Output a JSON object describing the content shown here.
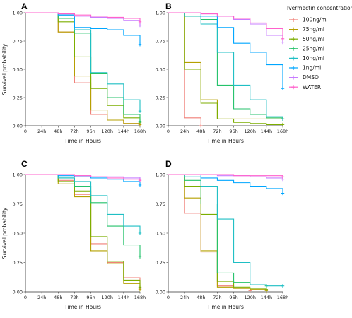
{
  "legend": {
    "title": "Ivermectin concentration",
    "placement": "right",
    "entries": [
      {
        "name": "100ng/ml",
        "color": "#f07f77"
      },
      {
        "name": "75ng/ml",
        "color": "#b5a000"
      },
      {
        "name": "50ng/ml",
        "color": "#7cae00"
      },
      {
        "name": "25ng/ml",
        "color": "#24c26b"
      },
      {
        "name": "10ng/ml",
        "color": "#1fbfc4"
      },
      {
        "name": "1ng/ml",
        "color": "#00a6ff"
      },
      {
        "name": "DMSO",
        "color": "#c77cff"
      },
      {
        "name": "WATER",
        "color": "#ff61cc"
      }
    ]
  },
  "chart_data": [
    {
      "panel": "A",
      "type": "line",
      "step": true,
      "ylabel": "Survival probability",
      "xlabel": "Time in Hours",
      "x_ticks": [
        "0",
        "24h",
        "48h",
        "72h",
        "96h",
        "120h",
        "144h",
        "168h"
      ],
      "y_ticks": [
        "0.00",
        "0.25",
        "0.50",
        "0.75",
        "1.00"
      ],
      "xlim": [
        0,
        7
      ],
      "ylim": [
        0,
        1
      ],
      "grid": false,
      "series": [
        {
          "name": "100ng/ml",
          "x": [
            1,
            2,
            3,
            4,
            5,
            6,
            7
          ],
          "y": [
            1.0,
            0.83,
            0.38,
            0.1,
            0.05,
            0.02,
            0.01
          ]
        },
        {
          "name": "75ng/ml",
          "x": [
            1,
            2,
            3,
            4,
            5,
            6,
            7
          ],
          "y": [
            1.0,
            0.83,
            0.44,
            0.14,
            0.05,
            0.02,
            0.01
          ]
        },
        {
          "name": "50ng/ml",
          "x": [
            1,
            2,
            3,
            4,
            5,
            6,
            7
          ],
          "y": [
            1.0,
            0.92,
            0.61,
            0.33,
            0.18,
            0.07,
            0.03
          ]
        },
        {
          "name": "25ng/ml",
          "x": [
            1,
            2,
            3,
            4,
            5,
            6,
            7
          ],
          "y": [
            1.0,
            0.95,
            0.82,
            0.46,
            0.25,
            0.1,
            0.04
          ]
        },
        {
          "name": "10ng/ml",
          "x": [
            1,
            2,
            3,
            4,
            5,
            6,
            7
          ],
          "y": [
            1.0,
            0.98,
            0.85,
            0.47,
            0.37,
            0.23,
            0.13
          ]
        },
        {
          "name": "1ng/ml",
          "x": [
            1,
            2,
            3,
            4,
            5,
            6,
            7
          ],
          "y": [
            1.0,
            0.98,
            0.87,
            0.86,
            0.85,
            0.8,
            0.72
          ]
        },
        {
          "name": "DMSO",
          "x": [
            1,
            2,
            3,
            4,
            5,
            6,
            7
          ],
          "y": [
            1.0,
            0.99,
            0.97,
            0.96,
            0.95,
            0.93,
            0.89
          ]
        },
        {
          "name": "WATER",
          "x": [
            1,
            2,
            3,
            4,
            5,
            6,
            7
          ],
          "y": [
            1.0,
            0.99,
            0.98,
            0.97,
            0.96,
            0.95,
            0.92
          ]
        }
      ]
    },
    {
      "panel": "B",
      "type": "line",
      "step": true,
      "ylabel": "",
      "xlabel": "Time in Hours",
      "x_ticks": [
        "0",
        "24h",
        "48h",
        "72h",
        "96h",
        "120h",
        "144h",
        "168h"
      ],
      "y_ticks": [
        "0.00",
        "0.25",
        "0.50",
        "0.75",
        "1.00"
      ],
      "xlim": [
        0,
        7
      ],
      "ylim": [
        0,
        1
      ],
      "grid": false,
      "series": [
        {
          "name": "100ng/ml",
          "x": [
            1,
            2
          ],
          "y": [
            0.07,
            0.0
          ]
        },
        {
          "name": "75ng/ml",
          "x": [
            1,
            2,
            3,
            4,
            5,
            6,
            7
          ],
          "y": [
            0.56,
            0.23,
            0.06,
            0.06,
            0.06,
            0.06,
            0.06
          ]
        },
        {
          "name": "50ng/ml",
          "x": [
            1,
            2,
            3,
            4,
            5,
            6,
            7
          ],
          "y": [
            0.5,
            0.2,
            0.06,
            0.03,
            0.02,
            0.01,
            0.01
          ]
        },
        {
          "name": "25ng/ml",
          "x": [
            1,
            2,
            3,
            4,
            5,
            6,
            7
          ],
          "y": [
            0.97,
            0.94,
            0.36,
            0.15,
            0.1,
            0.07,
            0.06
          ]
        },
        {
          "name": "10ng/ml",
          "x": [
            1,
            2,
            3,
            4,
            5,
            6,
            7
          ],
          "y": [
            0.97,
            0.9,
            0.65,
            0.36,
            0.23,
            0.08,
            0.06
          ]
        },
        {
          "name": "1ng/ml",
          "x": [
            1,
            2,
            3,
            4,
            5,
            6,
            7
          ],
          "y": [
            1.0,
            0.97,
            0.87,
            0.73,
            0.65,
            0.54,
            0.33
          ]
        },
        {
          "name": "DMSO",
          "x": [
            1,
            2,
            3,
            4,
            5,
            6,
            7
          ],
          "y": [
            1.0,
            0.99,
            0.97,
            0.94,
            0.9,
            0.8,
            0.74
          ]
        },
        {
          "name": "WATER",
          "x": [
            1,
            2,
            3,
            4,
            5,
            6,
            7
          ],
          "y": [
            1.0,
            0.99,
            0.97,
            0.95,
            0.91,
            0.86,
            0.77
          ]
        }
      ]
    },
    {
      "panel": "C",
      "type": "line",
      "step": true,
      "ylabel": "Survival probability",
      "xlabel": "Time in Hours",
      "x_ticks": [
        "0",
        "24h",
        "48h",
        "72h",
        "96h",
        "120h",
        "144h",
        "168h"
      ],
      "y_ticks": [
        "0.00",
        "0.25",
        "0.50",
        "0.75",
        "1.00"
      ],
      "xlim": [
        0,
        7
      ],
      "ylim": [
        0,
        1
      ],
      "grid": false,
      "series": [
        {
          "name": "100ng/ml",
          "x": [
            1,
            2,
            3,
            4,
            5,
            6,
            7
          ],
          "y": [
            1.0,
            0.95,
            0.83,
            0.41,
            0.25,
            0.12,
            0.03
          ]
        },
        {
          "name": "75ng/ml",
          "x": [
            1,
            2,
            3,
            4,
            5,
            6,
            7
          ],
          "y": [
            1.0,
            0.92,
            0.81,
            0.35,
            0.24,
            0.07,
            0.02
          ]
        },
        {
          "name": "50ng/ml",
          "x": [
            1,
            2,
            3,
            4,
            5,
            6,
            7
          ],
          "y": [
            1.0,
            0.94,
            0.86,
            0.47,
            0.26,
            0.1,
            0.04
          ]
        },
        {
          "name": "25ng/ml",
          "x": [
            1,
            2,
            3,
            4,
            5,
            6,
            7
          ],
          "y": [
            1.0,
            0.97,
            0.9,
            0.76,
            0.56,
            0.4,
            0.3
          ]
        },
        {
          "name": "10ng/ml",
          "x": [
            1,
            2,
            3,
            4,
            5,
            6,
            7
          ],
          "y": [
            1.0,
            0.97,
            0.94,
            0.82,
            0.66,
            0.56,
            0.5
          ]
        },
        {
          "name": "1ng/ml",
          "x": [
            1,
            2,
            3,
            4,
            5,
            6,
            7
          ],
          "y": [
            1.0,
            0.99,
            0.98,
            0.97,
            0.96,
            0.94,
            0.91
          ]
        },
        {
          "name": "DMSO",
          "x": [
            1,
            2,
            3,
            4,
            5,
            6,
            7
          ],
          "y": [
            1.0,
            1.0,
            0.99,
            0.98,
            0.98,
            0.97,
            0.96
          ]
        },
        {
          "name": "WATER",
          "x": [
            1,
            2,
            3,
            4,
            5,
            6,
            7
          ],
          "y": [
            1.0,
            1.0,
            0.99,
            0.98,
            0.97,
            0.96,
            0.95
          ]
        }
      ]
    },
    {
      "panel": "D",
      "type": "line",
      "step": true,
      "ylabel": "",
      "xlabel": "Time in Hours",
      "x_ticks": [
        "0",
        "24h",
        "48h",
        "72h",
        "96h",
        "120h",
        "144h",
        "168h"
      ],
      "y_ticks": [
        "0.00",
        "0.25",
        "0.50",
        "0.75",
        "1.00"
      ],
      "xlim": [
        0,
        7
      ],
      "ylim": [
        0,
        1
      ],
      "grid": false,
      "series": [
        {
          "name": "100ng/ml",
          "x": [
            1,
            2,
            3,
            4,
            5
          ],
          "y": [
            0.67,
            0.34,
            0.05,
            0.03,
            0.01
          ]
        },
        {
          "name": "75ng/ml",
          "x": [
            1,
            2,
            3,
            4,
            5,
            6
          ],
          "y": [
            0.8,
            0.35,
            0.04,
            0.03,
            0.02,
            0.01
          ]
        },
        {
          "name": "50ng/ml",
          "x": [
            1,
            2,
            3,
            4,
            5,
            6
          ],
          "y": [
            0.9,
            0.66,
            0.09,
            0.04,
            0.03,
            0.02
          ]
        },
        {
          "name": "25ng/ml",
          "x": [
            1,
            2,
            3,
            4,
            5,
            6
          ],
          "y": [
            0.95,
            0.75,
            0.16,
            0.08,
            0.06,
            0.05
          ]
        },
        {
          "name": "10ng/ml",
          "x": [
            1,
            2,
            3,
            4,
            5,
            6,
            7
          ],
          "y": [
            0.98,
            0.9,
            0.62,
            0.25,
            0.06,
            0.05,
            0.05
          ]
        },
        {
          "name": "1ng/ml",
          "x": [
            1,
            2,
            3,
            4,
            5,
            6,
            7
          ],
          "y": [
            1.0,
            0.97,
            0.95,
            0.93,
            0.9,
            0.88,
            0.84
          ]
        },
        {
          "name": "DMSO",
          "x": [
            1,
            2,
            3,
            4,
            5,
            6,
            7
          ],
          "y": [
            1.0,
            1.0,
            0.99,
            0.99,
            0.98,
            0.97,
            0.96
          ]
        },
        {
          "name": "WATER",
          "x": [
            1,
            2,
            3,
            4,
            5,
            6,
            7
          ],
          "y": [
            1.0,
            1.0,
            1.0,
            0.99,
            0.99,
            0.99,
            0.98
          ]
        }
      ]
    }
  ]
}
